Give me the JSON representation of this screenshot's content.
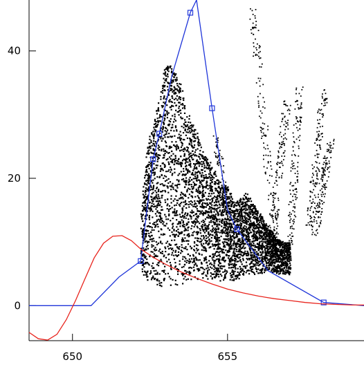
{
  "chart_data": {
    "type": "scatter",
    "title": "",
    "xlabel": "",
    "ylabel": "",
    "xlim": [
      648.6,
      659.4
    ],
    "ylim": [
      -5.5,
      48
    ],
    "x_ticks": [
      {
        "value": 650,
        "label": "650"
      },
      {
        "value": 655,
        "label": "655"
      }
    ],
    "y_ticks": [
      {
        "value": 0,
        "label": "0"
      },
      {
        "value": 20,
        "label": "20"
      },
      {
        "value": 40,
        "label": "40"
      }
    ],
    "grid": false,
    "legend": "none",
    "series": [
      {
        "kind": "line-markers",
        "color": "#1f35d9",
        "marker": "square",
        "x": [
          648.6,
          650.6,
          651.5,
          652.2,
          652.6,
          652.8,
          653.2,
          653.8,
          654.0,
          654.5,
          655.0,
          655.3,
          656.3,
          658.1,
          659.4
        ],
        "y": [
          0,
          0,
          4.5,
          7,
          23,
          27,
          36,
          46,
          48,
          31,
          15,
          12,
          5.5,
          0.5,
          0
        ],
        "marked": [
          false,
          false,
          false,
          true,
          true,
          true,
          false,
          true,
          false,
          true,
          false,
          true,
          false,
          true,
          false
        ]
      },
      {
        "kind": "line",
        "color": "#e8231c",
        "x": [
          648.6,
          648.9,
          649.2,
          649.5,
          649.8,
          650.1,
          650.4,
          650.7,
          651.0,
          651.3,
          651.6,
          651.9,
          652.2,
          652.6,
          653.0,
          653.5,
          654.0,
          654.5,
          655.0,
          655.5,
          656.0,
          656.5,
          657.0,
          657.5,
          658.0,
          658.5,
          659.0,
          659.4
        ],
        "y": [
          -4.2,
          -5.2,
          -5.4,
          -4.5,
          -2.2,
          0.8,
          4.2,
          7.5,
          9.8,
          10.9,
          11.0,
          10.2,
          8.9,
          7.6,
          6.5,
          5.3,
          4.3,
          3.4,
          2.6,
          2.0,
          1.5,
          1.1,
          0.8,
          0.5,
          0.3,
          0.2,
          0.1,
          0.1
        ]
      },
      {
        "kind": "scatter-cloud",
        "color": "#000000",
        "columns": [
          {
            "x": 652.2,
            "low": 5,
            "high": 14
          },
          {
            "x": 652.4,
            "low": 4,
            "high": 26
          },
          {
            "x": 652.6,
            "low": 3.5,
            "high": 29
          },
          {
            "x": 652.8,
            "low": 3,
            "high": 33
          },
          {
            "x": 653.0,
            "low": 3,
            "high": 38.5
          },
          {
            "x": 653.2,
            "low": 3,
            "high": 38
          },
          {
            "x": 653.4,
            "low": 3,
            "high": 36
          },
          {
            "x": 653.6,
            "low": 3.5,
            "high": 32
          },
          {
            "x": 653.8,
            "low": 4,
            "high": 29
          },
          {
            "x": 654.0,
            "low": 4,
            "high": 28
          },
          {
            "x": 654.2,
            "low": 4,
            "high": 24
          },
          {
            "x": 654.4,
            "low": 4,
            "high": 23
          },
          {
            "x": 654.6,
            "low": 4,
            "high": 21
          },
          {
            "x": 654.8,
            "low": 4,
            "high": 19
          },
          {
            "x": 655.0,
            "low": 4,
            "high": 19
          },
          {
            "x": 655.2,
            "low": 4,
            "high": 16
          },
          {
            "x": 655.4,
            "low": 4.5,
            "high": 17
          },
          {
            "x": 655.6,
            "low": 5,
            "high": 18
          },
          {
            "x": 655.8,
            "low": 5,
            "high": 16
          },
          {
            "x": 656.0,
            "low": 5,
            "high": 15
          },
          {
            "x": 656.2,
            "low": 5.5,
            "high": 13
          },
          {
            "x": 656.4,
            "low": 5.5,
            "high": 12
          },
          {
            "x": 656.6,
            "low": 5,
            "high": 10.5
          },
          {
            "x": 656.8,
            "low": 5,
            "high": 10
          }
        ],
        "plumes": [
          {
            "x0": 656.5,
            "y0": 11,
            "x1": 655.8,
            "y1": 46.5
          },
          {
            "x0": 656.4,
            "y0": 9,
            "x1": 656.9,
            "y1": 32
          },
          {
            "x0": 657.0,
            "y0": 10,
            "x1": 657.3,
            "y1": 34
          },
          {
            "x0": 655.2,
            "y0": 6,
            "x1": 654.6,
            "y1": 27
          },
          {
            "x0": 657.6,
            "y0": 12,
            "x1": 658.1,
            "y1": 34
          },
          {
            "x0": 657.8,
            "y0": 11,
            "x1": 658.3,
            "y1": 26
          }
        ]
      }
    ]
  }
}
